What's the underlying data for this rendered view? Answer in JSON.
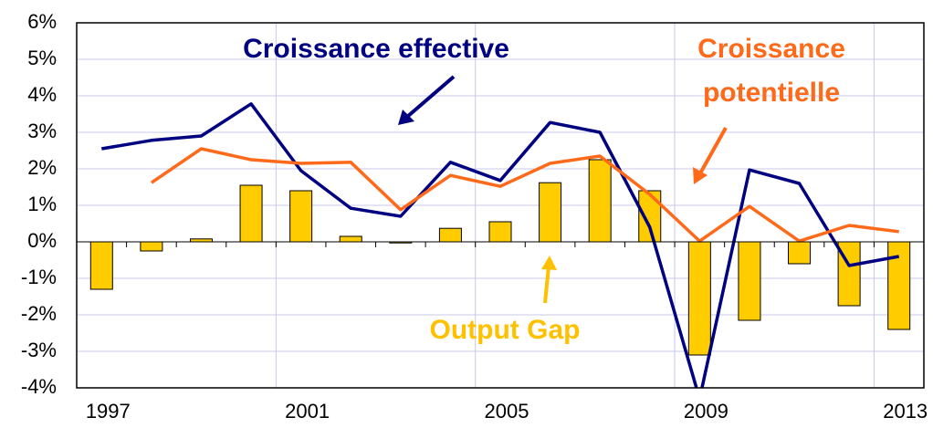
{
  "chart_data": {
    "type": "bar-line",
    "categories": [
      "1997",
      null,
      null,
      null,
      "2001",
      null,
      null,
      null,
      "2005",
      null,
      null,
      null,
      "2009",
      null,
      null,
      null,
      "2013"
    ],
    "series": [
      {
        "name": "Output Gap",
        "type": "bar",
        "color": "#ffcc00",
        "values": [
          -1.3,
          -0.25,
          0.08,
          1.55,
          1.4,
          0.15,
          -0.03,
          0.37,
          0.55,
          1.62,
          2.25,
          1.4,
          -3.1,
          -2.15,
          -0.6,
          -1.75,
          -2.4
        ]
      },
      {
        "name": "Croissance effective",
        "type": "line",
        "color": "#000080",
        "values": [
          2.55,
          2.78,
          2.9,
          3.78,
          1.95,
          0.92,
          0.7,
          2.18,
          1.68,
          3.27,
          3.0,
          0.4,
          -4.3,
          1.97,
          1.6,
          -0.65,
          -0.4
        ]
      },
      {
        "name": "Croissance potentielle",
        "type": "line",
        "color": "#ff6a1a",
        "values": [
          null,
          1.62,
          2.55,
          2.25,
          2.15,
          2.18,
          0.88,
          1.82,
          1.52,
          2.15,
          2.35,
          1.3,
          0.02,
          0.97,
          0.02,
          0.45,
          0.28
        ]
      }
    ],
    "ylim": [
      -4,
      6
    ],
    "yticks": [
      {
        "value": -4,
        "label": "-4%"
      },
      {
        "value": -3,
        "label": "-3%"
      },
      {
        "value": -2,
        "label": "-2%"
      },
      {
        "value": -1,
        "label": "-1%"
      },
      {
        "value": 0,
        "label": "0%"
      },
      {
        "value": 1,
        "label": "1%"
      },
      {
        "value": 2,
        "label": "2%"
      },
      {
        "value": 3,
        "label": "3%"
      },
      {
        "value": 4,
        "label": "4%"
      },
      {
        "value": 5,
        "label": "5%"
      },
      {
        "value": 6,
        "label": "6%"
      }
    ],
    "grid": true
  }
}
